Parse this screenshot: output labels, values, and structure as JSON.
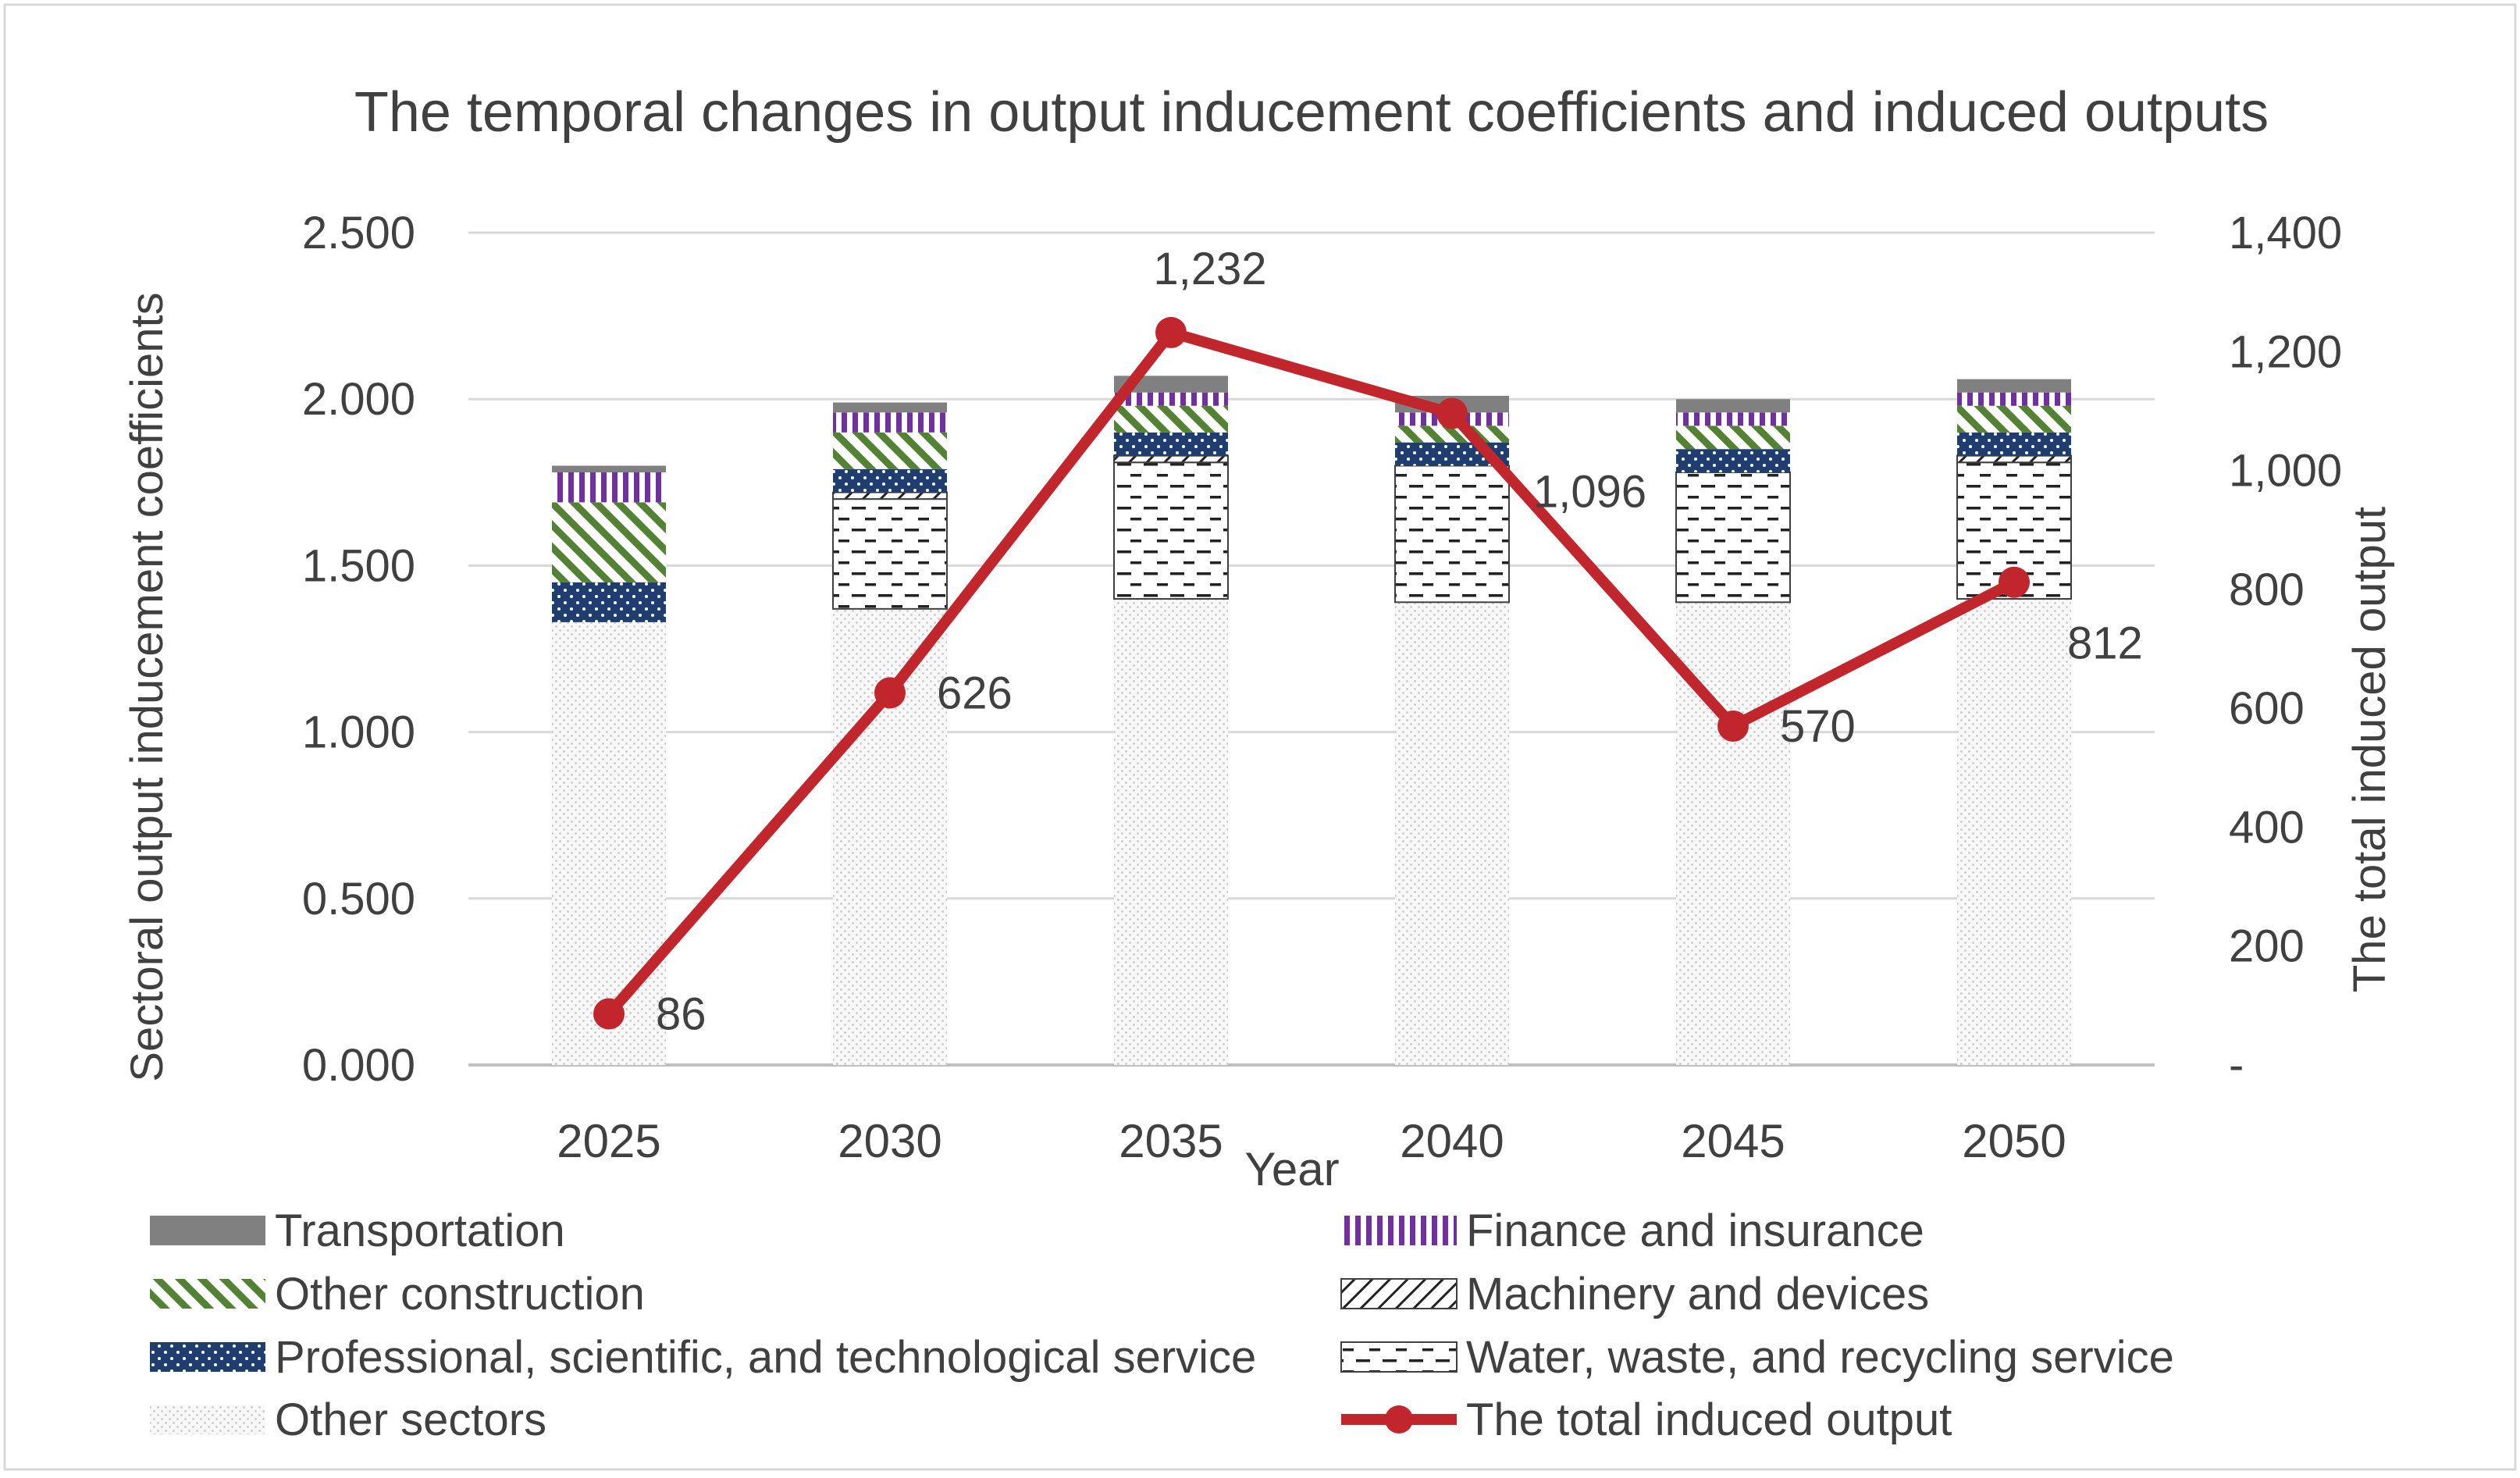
{
  "chart_data": {
    "type": "bar",
    "title": "The temporal changes in output inducement coefficients and induced outputs",
    "xlabel": "Year",
    "ylabel": "Sectoral output inducement coefficients",
    "y2label": "The total induced output",
    "categories": [
      "2025",
      "2030",
      "2035",
      "2040",
      "2045",
      "2050"
    ],
    "ylim": [
      0,
      2.5
    ],
    "y_ticks": [
      "0.000",
      "0.500",
      "1.000",
      "1.500",
      "2.000",
      "2.500"
    ],
    "y2lim": [
      0,
      1400
    ],
    "y2_ticks": [
      "-",
      "200",
      "400",
      "600",
      "800",
      "1,000",
      "1,200",
      "1,400"
    ],
    "grid": true,
    "legend_position": "bottom",
    "series": [
      {
        "name": "Other sectors",
        "pattern": "dots-light",
        "color": "#e6e6e6",
        "values": [
          1.33,
          1.37,
          1.4,
          1.39,
          1.39,
          1.4
        ]
      },
      {
        "name": "Water, waste, and recycling service",
        "pattern": "dashes",
        "color": "#000000",
        "values": [
          0.0,
          0.33,
          0.41,
          0.41,
          0.39,
          0.41
        ]
      },
      {
        "name": "Machinery and devices",
        "pattern": "diagonal-lines",
        "color": "#000000",
        "values": [
          0.0,
          0.02,
          0.02,
          0.0,
          0.0,
          0.02
        ]
      },
      {
        "name": "Professional, scientific, and technological service",
        "pattern": "dots-dark",
        "color": "#1f3d6e",
        "values": [
          0.12,
          0.07,
          0.07,
          0.07,
          0.07,
          0.07
        ]
      },
      {
        "name": "Other construction",
        "pattern": "diagonal-green",
        "color": "#548235",
        "values": [
          0.24,
          0.11,
          0.08,
          0.05,
          0.07,
          0.08
        ]
      },
      {
        "name": "Finance and insurance",
        "pattern": "vertical-purple",
        "color": "#7030a0",
        "values": [
          0.09,
          0.06,
          0.04,
          0.04,
          0.04,
          0.04
        ]
      },
      {
        "name": "Transportation",
        "pattern": "solid",
        "color": "#808080",
        "values": [
          0.02,
          0.03,
          0.05,
          0.05,
          0.04,
          0.04
        ]
      }
    ],
    "line_series": {
      "name": "The total induced output",
      "axis": "secondary",
      "color": "#c0262c",
      "values": [
        86,
        626,
        1232,
        1096,
        570,
        812
      ],
      "labels": [
        "86",
        "626",
        "1,232",
        "1,096",
        "570",
        "812"
      ]
    },
    "legend_order": [
      "Transportation",
      "Finance and insurance",
      "Other construction",
      "Machinery and devices",
      "Professional, scientific, and technological service",
      "Water, waste, and recycling service",
      "Other sectors",
      "The total induced output"
    ]
  }
}
